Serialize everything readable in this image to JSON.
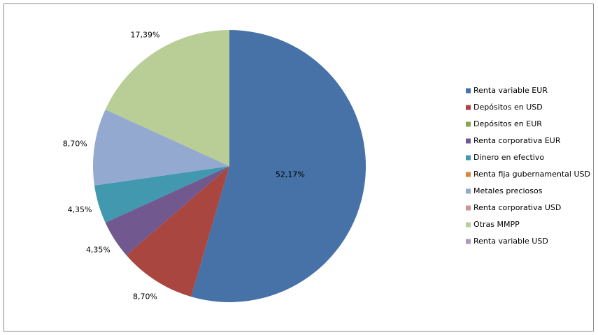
{
  "chart_data": {
    "type": "pie",
    "categories": [
      "Renta variable EUR",
      "Depósitos en USD",
      "Depósitos en EUR",
      "Renta corporativa EUR",
      "Dinero en efectivo",
      "Renta fija gubernamental USD",
      "Metales preciosos",
      "Renta corporativa USD",
      "Otras MMPP",
      "Renta variable USD"
    ],
    "values": [
      52.17,
      8.7,
      0,
      4.35,
      4.35,
      0,
      8.7,
      0,
      17.39,
      0
    ],
    "value_labels": [
      "52,17%",
      "8,70%",
      null,
      "4,35%",
      "4,35%",
      null,
      "8,70%",
      null,
      "17,39%",
      null
    ],
    "colors": [
      "#4672a8",
      "#a9463f",
      "#89a54e",
      "#71588f",
      "#4198af",
      "#db843d",
      "#93a9cf",
      "#d19392",
      "#b9cd96",
      "#a99bbd"
    ],
    "legend": "right"
  }
}
